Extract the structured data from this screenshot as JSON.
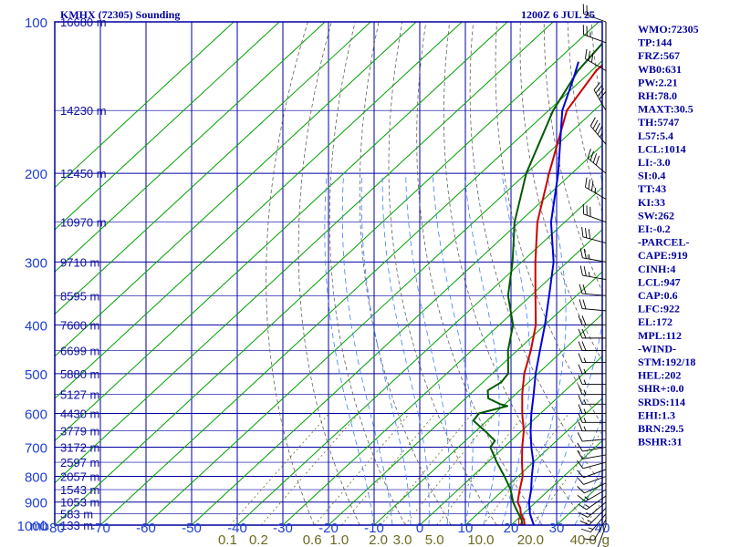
{
  "header": {
    "station": "KMHX (72305) Sounding",
    "datetime": "1200Z  6 JUL 25"
  },
  "colors": {
    "frame": "#0000a0",
    "temperature": "#cc0000",
    "dewpoint": "#005a00",
    "parcel": "#0000dd",
    "dry_adiabat": "#606060",
    "moist_adiabat": "#3f7fff",
    "isotherm": "#00a000",
    "mixing_ratio": "#707020"
  },
  "chart_data": {
    "type": "line",
    "title": "KMHX (72305) Sounding",
    "subtitle": "1200Z  6 JUL 25",
    "y_scale": "log-pressure",
    "ylim": [
      1000,
      100
    ],
    "xlim": [
      -80,
      40
    ],
    "pressure_unit": "mb",
    "mixing_ratio_unit": "g",
    "pressure_ticks": [
      100,
      200,
      300,
      400,
      500,
      600,
      700,
      800,
      900,
      1000
    ],
    "temperature_ticks": [
      -80,
      -70,
      -60,
      -50,
      -40,
      -30,
      -20,
      -10,
      0,
      10,
      20,
      30,
      40
    ],
    "temperature_tick_labels": [
      "-80",
      "-70",
      "-60",
      "-50",
      "-40",
      "-30",
      "-20",
      "-10",
      "0",
      "10",
      "20",
      "30",
      "40"
    ],
    "mixing_ratio_ticks": [
      {
        "g": 0.1,
        "label": "0.1"
      },
      {
        "g": 0.2,
        "label": "0.2"
      },
      {
        "g": 0.6,
        "label": "0.6"
      },
      {
        "g": 1.0,
        "label": "1.0"
      },
      {
        "g": 2.0,
        "label": "2.0"
      },
      {
        "g": 3.0,
        "label": "3.0"
      },
      {
        "g": 5.0,
        "label": "5.0"
      },
      {
        "g": 10.0,
        "label": "10.0"
      },
      {
        "g": 20.0,
        "label": "20.0"
      },
      {
        "g": 40.0,
        "label": "40.0"
      }
    ],
    "height_labels": [
      {
        "p": 100,
        "label": "16680 m"
      },
      {
        "p": 150,
        "label": "14230 m"
      },
      {
        "p": 200,
        "label": "12450 m"
      },
      {
        "p": 250,
        "label": "10970 m"
      },
      {
        "p": 300,
        "label": "9710 m"
      },
      {
        "p": 350,
        "label": "8595 m"
      },
      {
        "p": 400,
        "label": "7600 m"
      },
      {
        "p": 450,
        "label": "6699 m"
      },
      {
        "p": 500,
        "label": "5880 m"
      },
      {
        "p": 550,
        "label": "5127 m"
      },
      {
        "p": 600,
        "label": "4430 m"
      },
      {
        "p": 650,
        "label": "3779 m"
      },
      {
        "p": 700,
        "label": "3172 m"
      },
      {
        "p": 750,
        "label": "2597 m"
      },
      {
        "p": 800,
        "label": "2057 m"
      },
      {
        "p": 850,
        "label": "1543 m"
      },
      {
        "p": 900,
        "label": "1053 m"
      },
      {
        "p": 950,
        "label": "583 m"
      },
      {
        "p": 1000,
        "label": "133 m"
      }
    ],
    "series": [
      {
        "key": "temperature",
        "points": [
          [
            1013,
            23
          ],
          [
            1000,
            23
          ],
          [
            975,
            21.5
          ],
          [
            950,
            19.5
          ],
          [
            925,
            18
          ],
          [
            900,
            16
          ],
          [
            850,
            13.5
          ],
          [
            800,
            11
          ],
          [
            750,
            7.5
          ],
          [
            700,
            4
          ],
          [
            650,
            0.5
          ],
          [
            600,
            -4
          ],
          [
            550,
            -8.5
          ],
          [
            500,
            -13
          ],
          [
            450,
            -17
          ],
          [
            400,
            -22
          ],
          [
            350,
            -29
          ],
          [
            300,
            -37
          ],
          [
            250,
            -46
          ],
          [
            200,
            -55
          ],
          [
            150,
            -66
          ],
          [
            125,
            -69
          ],
          [
            110,
            -69
          ],
          [
            100,
            -70
          ]
        ]
      },
      {
        "key": "dewpoint",
        "points": [
          [
            1013,
            23
          ],
          [
            1000,
            22.5
          ],
          [
            975,
            21
          ],
          [
            950,
            19
          ],
          [
            925,
            17
          ],
          [
            900,
            15
          ],
          [
            850,
            11.5
          ],
          [
            800,
            7
          ],
          [
            750,
            2
          ],
          [
            700,
            -3
          ],
          [
            680,
            -3.5
          ],
          [
            650,
            -8
          ],
          [
            620,
            -13
          ],
          [
            600,
            -13.5
          ],
          [
            580,
            -9
          ],
          [
            575,
            -11
          ],
          [
            560,
            -15
          ],
          [
            540,
            -17
          ],
          [
            520,
            -16
          ],
          [
            500,
            -16.5
          ],
          [
            450,
            -22
          ],
          [
            400,
            -27
          ],
          [
            350,
            -35
          ],
          [
            300,
            -42
          ],
          [
            250,
            -51
          ],
          [
            200,
            -60
          ],
          [
            150,
            -69
          ],
          [
            125,
            -73
          ],
          [
            100,
            -75
          ]
        ]
      },
      {
        "key": "parcel",
        "points": [
          [
            1013,
            26
          ],
          [
            1000,
            25
          ],
          [
            950,
            21.5
          ],
          [
            900,
            18.5
          ],
          [
            850,
            16
          ],
          [
            800,
            13
          ],
          [
            750,
            10
          ],
          [
            700,
            6
          ],
          [
            650,
            2
          ],
          [
            600,
            -2
          ],
          [
            550,
            -6
          ],
          [
            500,
            -10.5
          ],
          [
            450,
            -15
          ],
          [
            400,
            -20
          ],
          [
            350,
            -26
          ],
          [
            300,
            -33
          ],
          [
            250,
            -43
          ],
          [
            200,
            -53
          ],
          [
            150,
            -67
          ],
          [
            130,
            -72
          ],
          [
            120,
            -75
          ]
        ]
      }
    ],
    "wind_barbs": [
      {
        "p": 1000,
        "dir": 200,
        "kt": 5
      },
      {
        "p": 975,
        "dir": 210,
        "kt": 10
      },
      {
        "p": 950,
        "dir": 220,
        "kt": 15
      },
      {
        "p": 925,
        "dir": 225,
        "kt": 15
      },
      {
        "p": 900,
        "dir": 230,
        "kt": 15
      },
      {
        "p": 875,
        "dir": 235,
        "kt": 15
      },
      {
        "p": 850,
        "dir": 240,
        "kt": 15
      },
      {
        "p": 825,
        "dir": 245,
        "kt": 10
      },
      {
        "p": 800,
        "dir": 250,
        "kt": 10
      },
      {
        "p": 775,
        "dir": 250,
        "kt": 10
      },
      {
        "p": 750,
        "dir": 255,
        "kt": 10
      },
      {
        "p": 725,
        "dir": 260,
        "kt": 10
      },
      {
        "p": 700,
        "dir": 260,
        "kt": 10
      },
      {
        "p": 675,
        "dir": 265,
        "kt": 10
      },
      {
        "p": 650,
        "dir": 270,
        "kt": 15
      },
      {
        "p": 625,
        "dir": 270,
        "kt": 15
      },
      {
        "p": 600,
        "dir": 270,
        "kt": 15
      },
      {
        "p": 575,
        "dir": 270,
        "kt": 15
      },
      {
        "p": 550,
        "dir": 270,
        "kt": 15
      },
      {
        "p": 525,
        "dir": 270,
        "kt": 15
      },
      {
        "p": 500,
        "dir": 270,
        "kt": 15
      },
      {
        "p": 475,
        "dir": 270,
        "kt": 15
      },
      {
        "p": 450,
        "dir": 270,
        "kt": 20
      },
      {
        "p": 425,
        "dir": 270,
        "kt": 20
      },
      {
        "p": 400,
        "dir": 270,
        "kt": 20
      },
      {
        "p": 375,
        "dir": 275,
        "kt": 20
      },
      {
        "p": 350,
        "dir": 275,
        "kt": 20
      },
      {
        "p": 325,
        "dir": 280,
        "kt": 25
      },
      {
        "p": 300,
        "dir": 280,
        "kt": 25
      },
      {
        "p": 275,
        "dir": 285,
        "kt": 30
      },
      {
        "p": 250,
        "dir": 290,
        "kt": 30
      },
      {
        "p": 225,
        "dir": 300,
        "kt": 35
      },
      {
        "p": 200,
        "dir": 310,
        "kt": 40
      },
      {
        "p": 175,
        "dir": 320,
        "kt": 45
      },
      {
        "p": 150,
        "dir": 330,
        "kt": 40
      },
      {
        "p": 125,
        "dir": 300,
        "kt": 30
      },
      {
        "p": 110,
        "dir": 290,
        "kt": 25
      },
      {
        "p": 100,
        "dir": 290,
        "kt": 25
      }
    ],
    "indices": [
      "WMO:72305",
      "TP:144",
      "FRZ:567",
      "WB0:631",
      "PW:2.21",
      "RH:78.0",
      "MAXT:30.5",
      "TH:5747",
      "L57:5.4",
      "LCL:1014",
      "LI:-3.0",
      "SI:0.4",
      "TT:43",
      "KI:33",
      "SW:262",
      "EI:-0.2",
      "-PARCEL-",
      "CAPE:919",
      "CINH:4",
      "LCL:947",
      "CAP:0.6",
      "LFC:922",
      "EL:172",
      "MPL:112",
      "-WIND-",
      "STM:192/18",
      "HEL:202",
      "SHR+:0.0",
      "SRDS:114",
      "EHI:1.3",
      "BRN:29.5",
      "BSHR:31"
    ]
  }
}
